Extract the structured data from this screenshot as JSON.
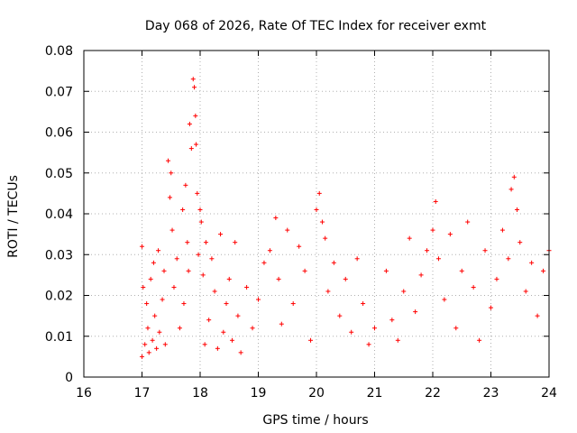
{
  "chart_data": {
    "type": "scatter",
    "title": "Day 068 of 2026, Rate Of TEC Index for receiver exmt",
    "xlabel": "GPS time / hours",
    "ylabel": "ROTI / TECUs",
    "xlim": [
      16,
      24
    ],
    "ylim": [
      0,
      0.08
    ],
    "x_ticks": [
      16,
      17,
      18,
      19,
      20,
      21,
      22,
      23,
      24
    ],
    "x_tick_labels": [
      "16",
      "17",
      "18",
      "19",
      "20",
      "21",
      "22",
      "23",
      "24"
    ],
    "y_ticks": [
      0,
      0.01,
      0.02,
      0.03,
      0.04,
      0.05,
      0.06,
      0.07,
      0.08
    ],
    "y_tick_labels": [
      "0",
      "0.01",
      "0.02",
      "0.03",
      "0.04",
      "0.05",
      "0.06",
      "0.07",
      "0.08"
    ],
    "grid": true,
    "marker": "+",
    "color": "#ff0000",
    "series": [
      {
        "name": "ROTI",
        "x": [
          17.0,
          17.0,
          17.02,
          17.05,
          17.08,
          17.1,
          17.12,
          17.15,
          17.18,
          17.2,
          17.22,
          17.25,
          17.28,
          17.3,
          17.35,
          17.38,
          17.4,
          17.45,
          17.48,
          17.5,
          17.52,
          17.55,
          17.6,
          17.65,
          17.7,
          17.72,
          17.75,
          17.78,
          17.8,
          17.82,
          17.85,
          17.88,
          17.9,
          17.92,
          17.93,
          17.95,
          17.97,
          18.0,
          18.02,
          18.05,
          18.08,
          18.1,
          18.15,
          18.2,
          18.25,
          18.3,
          18.35,
          18.4,
          18.45,
          18.5,
          18.55,
          18.6,
          18.65,
          18.7,
          18.8,
          18.9,
          19.0,
          19.1,
          19.2,
          19.3,
          19.35,
          19.4,
          19.5,
          19.6,
          19.7,
          19.8,
          19.9,
          20.0,
          20.05,
          20.1,
          20.15,
          20.2,
          20.3,
          20.4,
          20.5,
          20.6,
          20.7,
          20.8,
          20.9,
          21.0,
          21.2,
          21.3,
          21.4,
          21.5,
          21.6,
          21.7,
          21.8,
          21.9,
          22.0,
          22.05,
          22.1,
          22.2,
          22.3,
          22.4,
          22.5,
          22.6,
          22.7,
          22.8,
          22.9,
          23.0,
          23.1,
          23.2,
          23.3,
          23.35,
          23.4,
          23.45,
          23.5,
          23.6,
          23.7,
          23.8,
          23.9,
          24.0
        ],
        "y": [
          0.032,
          0.005,
          0.022,
          0.008,
          0.018,
          0.012,
          0.006,
          0.024,
          0.009,
          0.028,
          0.015,
          0.007,
          0.031,
          0.011,
          0.019,
          0.026,
          0.008,
          0.053,
          0.044,
          0.05,
          0.036,
          0.022,
          0.029,
          0.012,
          0.041,
          0.018,
          0.047,
          0.033,
          0.026,
          0.062,
          0.056,
          0.073,
          0.071,
          0.064,
          0.057,
          0.045,
          0.03,
          0.041,
          0.038,
          0.025,
          0.008,
          0.033,
          0.014,
          0.029,
          0.021,
          0.007,
          0.035,
          0.011,
          0.018,
          0.024,
          0.009,
          0.033,
          0.015,
          0.006,
          0.022,
          0.012,
          0.019,
          0.028,
          0.031,
          0.039,
          0.024,
          0.013,
          0.036,
          0.018,
          0.032,
          0.026,
          0.009,
          0.041,
          0.045,
          0.038,
          0.034,
          0.021,
          0.028,
          0.015,
          0.024,
          0.011,
          0.029,
          0.018,
          0.008,
          0.012,
          0.026,
          0.014,
          0.009,
          0.021,
          0.034,
          0.016,
          0.025,
          0.031,
          0.036,
          0.043,
          0.029,
          0.019,
          0.035,
          0.012,
          0.026,
          0.038,
          0.022,
          0.009,
          0.031,
          0.017,
          0.024,
          0.036,
          0.029,
          0.046,
          0.049,
          0.041,
          0.033,
          0.021,
          0.028,
          0.015,
          0.026,
          0.031
        ]
      }
    ]
  }
}
